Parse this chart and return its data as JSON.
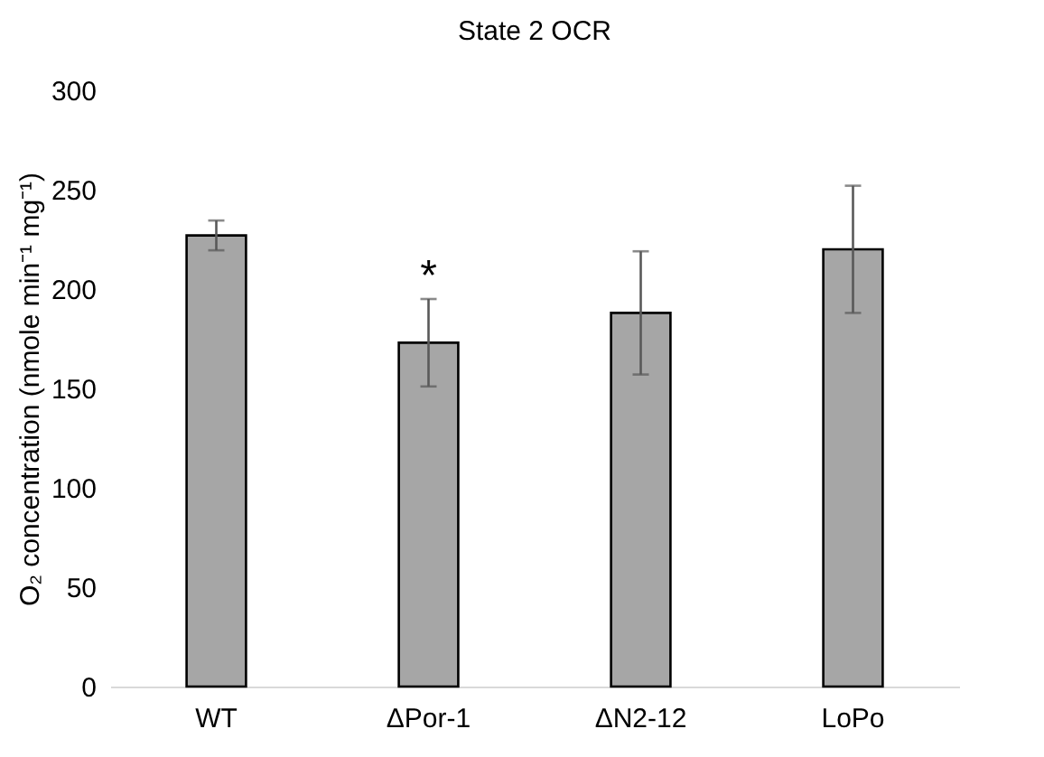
{
  "chart_data": {
    "type": "bar",
    "title": "State 2 OCR",
    "ylabel": "O₂ concentration (nmole min⁻¹ mg⁻¹)",
    "categories": [
      "WT",
      "ΔPor-1",
      "ΔN2-12",
      "LoPo"
    ],
    "series": [
      {
        "color": "#a6a6a6",
        "values": [
          227,
          173,
          188,
          220
        ],
        "errors": [
          7.5,
          22,
          31,
          32
        ]
      }
    ],
    "ylim": [
      0,
      300
    ],
    "yticks": [
      0,
      50,
      100,
      150,
      200,
      250,
      300
    ],
    "grid": false,
    "annotations": [
      {
        "text": "*",
        "x": "ΔPor-1",
        "y": 195
      }
    ]
  }
}
